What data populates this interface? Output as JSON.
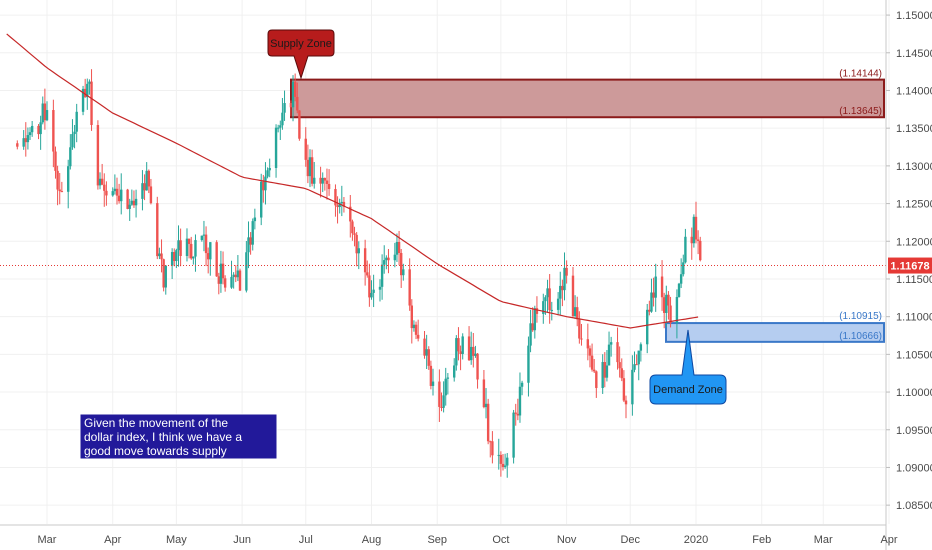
{
  "chart_data": {
    "type": "candlestick",
    "y_axis": {
      "range": [
        1.0825,
        1.152
      ],
      "tick_labels": [
        "1.15000",
        "1.14500",
        "1.14000",
        "1.13500",
        "1.13000",
        "1.12500",
        "1.12000",
        "1.11500",
        "1.11000",
        "1.10500",
        "1.10000",
        "1.09500",
        "1.09000",
        "1.08500"
      ],
      "tick_values": [
        1.15,
        1.145,
        1.14,
        1.135,
        1.13,
        1.125,
        1.12,
        1.115,
        1.11,
        1.105,
        1.1,
        1.095,
        1.09,
        1.085
      ]
    },
    "x_axis": {
      "month_labels": [
        "Mar",
        "Apr",
        "May",
        "Jun",
        "Jul",
        "Aug",
        "Sep",
        "Oct",
        "Nov",
        "Dec",
        "2020",
        "Feb",
        "Mar",
        "Apr"
      ]
    },
    "price_path": [
      [
        "Feb 15",
        1.133
      ],
      [
        "Mar 1",
        1.137
      ],
      [
        "Mar 7",
        1.125
      ],
      [
        "Mar 20",
        1.142
      ],
      [
        "Mar 25",
        1.129
      ],
      [
        "Apr 8",
        1.125
      ],
      [
        "Apr 17",
        1.128
      ],
      [
        "Apr 25",
        1.115
      ],
      [
        "May 3",
        1.119
      ],
      [
        "May 15",
        1.1195
      ],
      [
        "May 23",
        1.115
      ],
      [
        "May 31",
        1.115
      ],
      [
        "Jun 12",
        1.129
      ],
      [
        "Jun 25",
        1.14
      ],
      [
        "Jul 1",
        1.13
      ],
      [
        "Jul 10",
        1.127
      ],
      [
        "Jul 20",
        1.125
      ],
      [
        "Aug 1",
        1.113
      ],
      [
        "Aug 12",
        1.12
      ],
      [
        "Aug 20",
        1.11
      ],
      [
        "Sep 3",
        1.098
      ],
      [
        "Sep 10",
        1.106
      ],
      [
        "Sep 18",
        1.105
      ],
      [
        "Sep 26",
        1.094
      ],
      [
        "Oct 1",
        1.09
      ],
      [
        "Oct 8",
        1.097
      ],
      [
        "Oct 18",
        1.112
      ],
      [
        "Oct 25",
        1.112
      ],
      [
        "Nov 1",
        1.116
      ],
      [
        "Nov 8",
        1.106
      ],
      [
        "Nov 15",
        1.102
      ],
      [
        "Nov 22",
        1.105
      ],
      [
        "Nov 29",
        1.1
      ],
      [
        "Dec 6",
        1.106
      ],
      [
        "Dec 13",
        1.114
      ],
      [
        "Dec 20",
        1.11
      ],
      [
        "Dec 27",
        1.119
      ],
      [
        "Jan 1",
        1.122
      ],
      [
        "Jan 3",
        1.116
      ]
    ],
    "moving_average_path": [
      [
        "Feb 10",
        1.1475
      ],
      [
        "Mar 1",
        1.143
      ],
      [
        "Apr 1",
        1.137
      ],
      [
        "May 1",
        1.133
      ],
      [
        "Jun 1",
        1.1285
      ],
      [
        "Jul 1",
        1.127
      ],
      [
        "Aug 1",
        1.123
      ],
      [
        "Sep 1",
        1.117
      ],
      [
        "Oct 1",
        1.112
      ],
      [
        "Nov 1",
        1.11
      ],
      [
        "Dec 1",
        1.1085
      ],
      [
        "Jan 3",
        1.11
      ]
    ],
    "last_price": "1.11678",
    "last_price_value": 1.11678,
    "supply_zone": {
      "label": "Supply Zone",
      "top": 1.14144,
      "bottom": 1.13645,
      "top_label": "(1.14144)",
      "bottom_label": "(1.13645)"
    },
    "demand_zone": {
      "label": "Demand Zone",
      "top": 1.10915,
      "bottom": 1.10666,
      "top_label": "(1.10915)",
      "bottom_label": "(1.10666)"
    },
    "note": "Given the movement of the dollar index, I think we have a good move towards supply",
    "colors": {
      "up": "#26a69a",
      "down": "#ef5350",
      "ma": "#c62828",
      "supply_fill": "#cd9a9a",
      "supply_border": "#8b1a1a",
      "demand_fill": "#b5cdf0",
      "demand_border": "#3a78c8",
      "last_price_tag": "#e53935",
      "note_bg": "#22199a"
    }
  }
}
